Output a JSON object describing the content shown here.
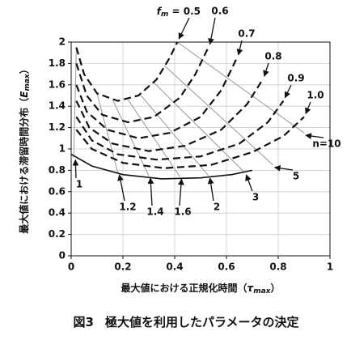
{
  "chart_data": {
    "type": "line",
    "fm_label": {
      "symbol": "f",
      "sub": "m",
      "eq": " = "
    },
    "xlabel": {
      "text": "最大値における正規化時間（",
      "symbol": "τ",
      "sub": "max",
      "close": "）"
    },
    "ylabel": {
      "text": "最大値における滞留時間分布（",
      "symbol": "E",
      "sub": "max",
      "close": "）"
    },
    "caption": {
      "fig": "図3",
      "text": "極大値を利用したパラメータの決定"
    },
    "xlim": [
      0,
      1
    ],
    "ylim": [
      0,
      2
    ],
    "xticks": [
      0,
      0.2,
      0.4,
      0.6,
      0.8,
      1
    ],
    "yticks": [
      0,
      0.2,
      0.4,
      0.6,
      0.8,
      1,
      1.2,
      1.4,
      1.6,
      1.8,
      2
    ],
    "grid": true,
    "series": [
      {
        "name": "0.5",
        "color": "#111111",
        "dashed": true,
        "x": [
          0.02,
          0.05,
          0.1,
          0.18,
          0.26,
          0.33,
          0.38,
          0.41
        ],
        "y": [
          1.95,
          1.7,
          1.52,
          1.45,
          1.5,
          1.65,
          1.85,
          2.0
        ]
      },
      {
        "name": "0.6",
        "color": "#111111",
        "dashed": true,
        "x": [
          0.02,
          0.06,
          0.12,
          0.22,
          0.32,
          0.42,
          0.48,
          0.53
        ],
        "y": [
          1.8,
          1.5,
          1.32,
          1.25,
          1.3,
          1.48,
          1.7,
          1.95
        ]
      },
      {
        "name": "0.7",
        "color": "#111111",
        "dashed": true,
        "x": [
          0.02,
          0.06,
          0.14,
          0.26,
          0.38,
          0.5,
          0.58,
          0.64
        ],
        "y": [
          1.6,
          1.35,
          1.18,
          1.1,
          1.15,
          1.3,
          1.55,
          1.85
        ]
      },
      {
        "name": "0.8",
        "color": "#111111",
        "dashed": true,
        "x": [
          0.02,
          0.07,
          0.16,
          0.3,
          0.44,
          0.58,
          0.68,
          0.74
        ],
        "y": [
          1.45,
          1.2,
          1.05,
          0.98,
          1.03,
          1.18,
          1.42,
          1.65
        ]
      },
      {
        "name": "0.9",
        "color": "#111111",
        "dashed": true,
        "x": [
          0.02,
          0.08,
          0.18,
          0.33,
          0.5,
          0.65,
          0.76,
          0.82
        ],
        "y": [
          1.3,
          1.08,
          0.95,
          0.9,
          0.93,
          1.05,
          1.25,
          1.45
        ]
      },
      {
        "name": "1.0",
        "color": "#111111",
        "dashed": true,
        "x": [
          0.02,
          0.08,
          0.2,
          0.36,
          0.54,
          0.7,
          0.82,
          0.9
        ],
        "y": [
          1.18,
          1.0,
          0.87,
          0.82,
          0.85,
          0.97,
          1.12,
          1.3
        ]
      },
      {
        "color": "#111111",
        "dashed": false,
        "x": [
          0.0,
          0.08,
          0.2,
          0.35,
          0.5,
          0.62,
          0.7
        ],
        "y": [
          0.95,
          0.84,
          0.76,
          0.72,
          0.73,
          0.76,
          0.8
        ]
      }
    ],
    "n_lines": [
      {
        "name": "1",
        "color": "#999999",
        "x": [
          0.01,
          0.02
        ],
        "y": [
          0.92,
          1.95
        ]
      },
      {
        "name": "1.2",
        "color": "#999999",
        "x": [
          0.18,
          0.1
        ],
        "y": [
          0.78,
          1.52
        ]
      },
      {
        "name": "1.4",
        "color": "#999999",
        "x": [
          0.3,
          0.16
        ],
        "y": [
          0.75,
          1.46
        ]
      },
      {
        "name": "1.6",
        "color": "#999999",
        "x": [
          0.42,
          0.22
        ],
        "y": [
          0.74,
          1.46
        ]
      },
      {
        "name": "2",
        "color": "#999999",
        "x": [
          0.53,
          0.27
        ],
        "y": [
          0.75,
          1.5
        ]
      },
      {
        "name": "3",
        "color": "#999999",
        "x": [
          0.67,
          0.32
        ],
        "y": [
          0.78,
          1.62
        ]
      },
      {
        "name": "5",
        "color": "#999999",
        "x": [
          0.78,
          0.36
        ],
        "y": [
          0.85,
          1.78
        ]
      },
      {
        "name": "n=10",
        "color": "#999999",
        "x": [
          0.9,
          0.41
        ],
        "y": [
          1.15,
          2.0
        ]
      }
    ]
  }
}
